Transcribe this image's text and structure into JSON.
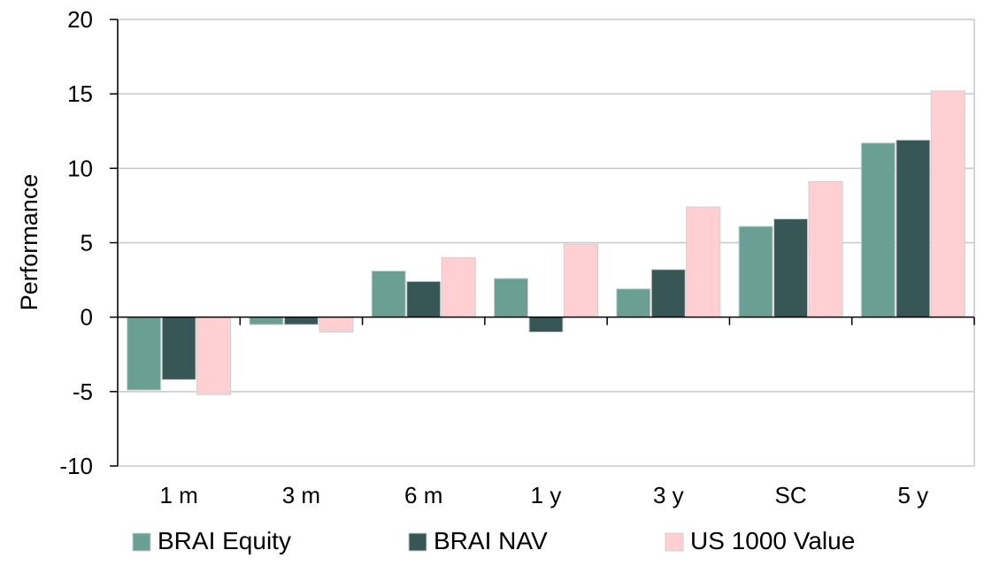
{
  "chart_data": {
    "type": "bar",
    "ylabel": "Performance",
    "xlabel": "",
    "ylim": [
      -10,
      20
    ],
    "yticks": [
      -10,
      -5,
      0,
      5,
      10,
      15,
      20
    ],
    "grid": "horizontal",
    "legend_position": "bottom",
    "categories": [
      "1 m",
      "3 m",
      "6 m",
      "1 y",
      "3 y",
      "SC",
      "5 y"
    ],
    "series": [
      {
        "name": "BRAI Equity",
        "color": "#6a9f94",
        "values": [
          -4.9,
          -0.5,
          3.1,
          2.6,
          1.9,
          6.1,
          11.7
        ]
      },
      {
        "name": "BRAI NAV",
        "color": "#375756",
        "values": [
          -4.2,
          -0.5,
          2.4,
          -1.0,
          3.2,
          6.6,
          11.9
        ]
      },
      {
        "name": "US 1000 Value",
        "color": "#ffcfd2",
        "values": [
          -5.2,
          -1.0,
          4.0,
          4.9,
          7.4,
          9.1,
          15.2
        ]
      }
    ]
  }
}
